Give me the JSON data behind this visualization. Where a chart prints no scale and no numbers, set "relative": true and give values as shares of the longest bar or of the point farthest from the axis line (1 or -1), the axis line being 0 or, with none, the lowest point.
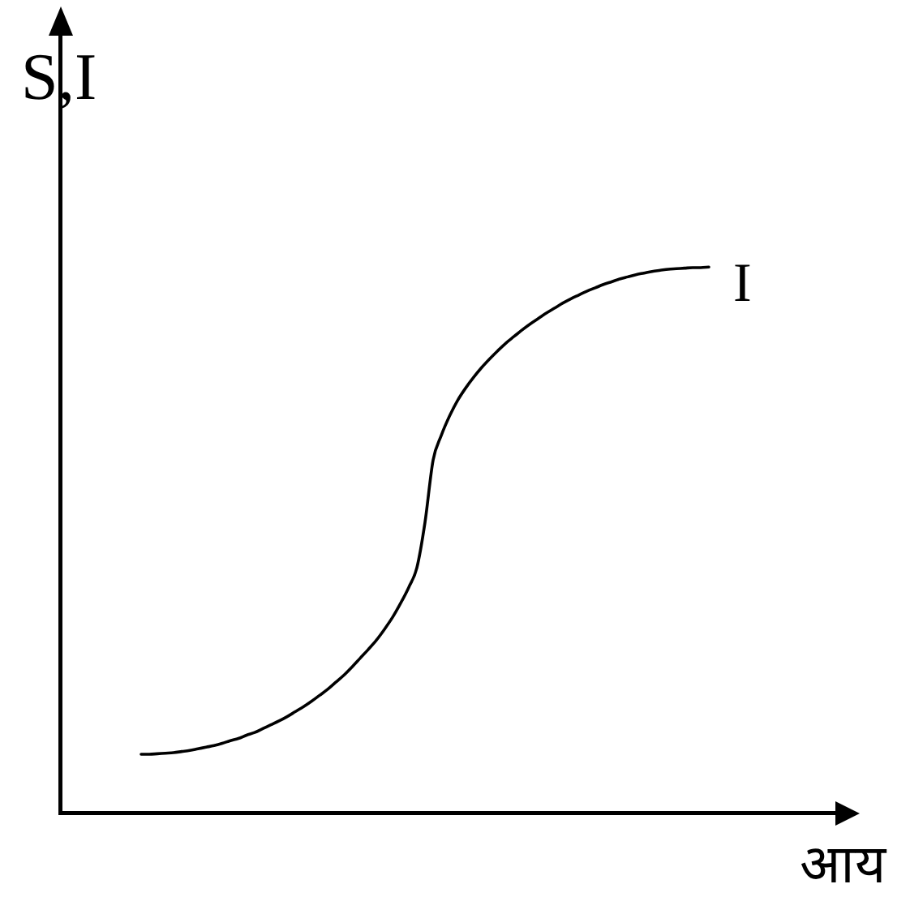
{
  "chart_data": {
    "type": "line",
    "xlabel": "आय",
    "ylabel": "S,I",
    "categories": [
      null,
      null,
      null,
      null,
      null,
      null,
      null,
      null,
      null,
      null,
      null,
      null,
      null,
      null,
      null,
      null,
      null,
      null,
      null,
      null,
      null,
      null,
      null,
      null,
      null,
      null,
      null,
      null,
      null,
      null,
      null,
      null,
      null,
      null,
      null,
      null,
      null,
      null,
      null,
      null,
      null,
      null,
      null,
      null,
      null,
      null,
      null,
      null,
      null,
      null,
      null,
      null,
      null,
      null,
      null,
      null,
      null,
      null,
      null,
      null,
      null,
      null,
      null,
      null,
      null,
      null,
      null,
      null,
      null,
      null,
      null,
      null,
      null,
      null,
      null,
      null,
      null,
      null,
      null,
      null,
      null,
      null,
      null,
      null,
      null,
      null,
      null,
      null,
      null,
      null,
      null,
      null,
      null,
      null,
      null,
      null,
      null
    ],
    "series": [
      {
        "name": "I",
        "color": "#000000",
        "values": [
          null,
          null,
          null,
          null,
          null,
          null,
          null,
          null,
          null,
          null,
          0.107,
          0.107,
          0.108,
          0.109,
          0.11,
          0.112,
          0.114,
          0.117,
          0.12,
          0.123,
          0.127,
          0.132,
          0.136,
          0.142,
          0.147,
          0.154,
          0.161,
          0.168,
          0.176,
          0.185,
          0.194,
          0.204,
          0.215,
          0.226,
          0.239,
          0.252,
          0.267,
          0.283,
          0.299,
          0.316,
          0.336,
          0.358,
          0.384,
          0.413,
          0.449,
          0.532,
          0.646,
          0.691,
          0.726,
          0.755,
          0.778,
          0.798,
          0.816,
          0.832,
          0.847,
          0.861,
          0.873,
          0.885,
          0.896,
          0.906,
          0.916,
          0.925,
          0.934,
          0.942,
          0.949,
          0.956,
          0.962,
          0.968,
          0.973,
          0.978,
          0.982,
          0.986,
          0.989,
          0.992,
          0.994,
          0.996,
          0.997,
          0.998,
          0.999,
          0.999,
          1,
          null,
          null,
          null,
          null,
          null,
          null,
          null,
          null,
          null,
          null,
          null,
          null,
          null,
          null,
          null,
          null
        ]
      }
    ],
    "relative": true,
    "marker": "none",
    "line_style": "solid",
    "legend": false,
    "grid": false,
    "tick_labels": false
  }
}
